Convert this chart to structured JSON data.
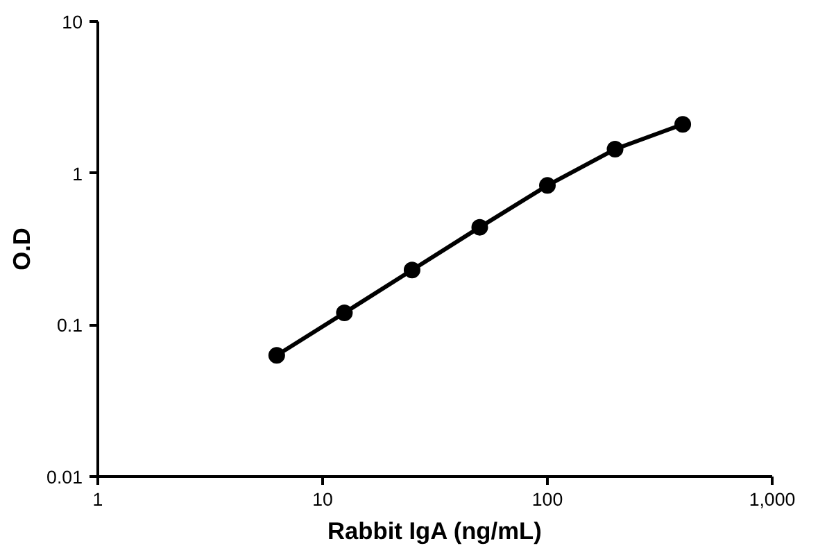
{
  "chart_data": {
    "type": "line",
    "xlabel": "Rabbit IgA (ng/mL)",
    "ylabel": "O.D",
    "x": [
      6.25,
      12.5,
      25,
      50,
      100,
      200,
      400
    ],
    "series": [
      {
        "color": "#000000",
        "values": [
          0.063,
          0.12,
          0.23,
          0.44,
          0.83,
          1.44,
          2.1
        ]
      }
    ],
    "log": "xy",
    "xlim": [
      1,
      1000
    ],
    "ylim": [
      0.01,
      10
    ],
    "xticks": [
      1,
      10,
      100,
      {
        "value": 1000,
        "label": "1,000"
      }
    ],
    "yticks": [
      0.01,
      0.1,
      1,
      10
    ],
    "grid": false,
    "marker": "circle",
    "line_style": "solid"
  }
}
